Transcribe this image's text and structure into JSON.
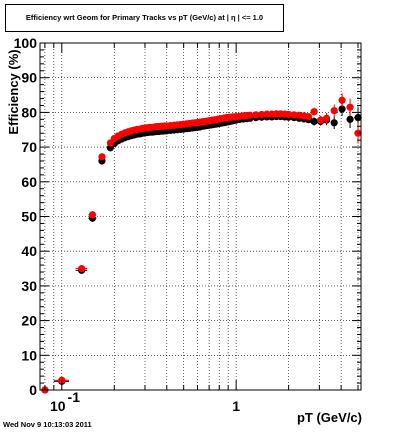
{
  "window": {
    "title": "Efficiency wrt Geom for Primary Tracks vs pT (GeV/c) at | η | <= 1.0",
    "timestamp": "Wed Nov  9 10:13:03 2011"
  },
  "chart_data": {
    "type": "scatter",
    "title": "Efficiency wrt Geom for Primary Tracks vs pT (GeV/c) at | η | <= 1.0",
    "xlabel": "pT (GeV/c)",
    "ylabel": "Efficiency (%)",
    "xscale": "log",
    "xlim": [
      0.075,
      5.2
    ],
    "ylim": [
      0,
      100
    ],
    "y_ticks": [
      0,
      10,
      20,
      30,
      40,
      50,
      60,
      70,
      80,
      90,
      100
    ],
    "x_tick_labels": [
      {
        "value": 0.1,
        "base": "10",
        "exp": "-1"
      },
      {
        "value": 1,
        "base": "1",
        "exp": ""
      }
    ],
    "grid": true,
    "legend": "none",
    "series": [
      {
        "color": "#000000",
        "points": [
          {
            "x": 0.08,
            "y": 0,
            "xerr": 0.004,
            "yerr": 0.5
          },
          {
            "x": 0.1,
            "y": 2.5,
            "xerr": 0.01,
            "yerr": 0.8
          },
          {
            "x": 0.13,
            "y": 34.5,
            "xerr": 0.01,
            "yerr": 1
          },
          {
            "x": 0.15,
            "y": 49.5,
            "xerr": 0.008,
            "yerr": 1
          },
          {
            "x": 0.17,
            "y": 66,
            "xerr": 0.006,
            "yerr": 1
          },
          {
            "x": 0.19,
            "y": 69.8,
            "xerr": 0.005,
            "yerr": 1
          },
          {
            "x": 0.2,
            "y": 71,
            "xerr": 0.005,
            "yerr": 0.8
          },
          {
            "x": 0.21,
            "y": 71.8
          },
          {
            "x": 0.22,
            "y": 72.3
          },
          {
            "x": 0.23,
            "y": 72.7
          },
          {
            "x": 0.24,
            "y": 73
          },
          {
            "x": 0.25,
            "y": 73.3
          },
          {
            "x": 0.26,
            "y": 73.5
          },
          {
            "x": 0.27,
            "y": 73.7
          },
          {
            "x": 0.28,
            "y": 73.8
          },
          {
            "x": 0.29,
            "y": 74
          },
          {
            "x": 0.3,
            "y": 74.1
          },
          {
            "x": 0.31,
            "y": 74.2
          },
          {
            "x": 0.32,
            "y": 74.3
          },
          {
            "x": 0.33,
            "y": 74.3
          },
          {
            "x": 0.34,
            "y": 74.4
          },
          {
            "x": 0.35,
            "y": 74.5
          },
          {
            "x": 0.36,
            "y": 74.5
          },
          {
            "x": 0.37,
            "y": 74.6
          },
          {
            "x": 0.38,
            "y": 74.6
          },
          {
            "x": 0.39,
            "y": 74.7
          },
          {
            "x": 0.4,
            "y": 74.7
          },
          {
            "x": 0.42,
            "y": 74.8
          },
          {
            "x": 0.44,
            "y": 74.9
          },
          {
            "x": 0.46,
            "y": 75
          },
          {
            "x": 0.48,
            "y": 75.1
          },
          {
            "x": 0.5,
            "y": 75.2
          },
          {
            "x": 0.52,
            "y": 75.3
          },
          {
            "x": 0.54,
            "y": 75.4
          },
          {
            "x": 0.56,
            "y": 75.5
          },
          {
            "x": 0.58,
            "y": 75.6
          },
          {
            "x": 0.6,
            "y": 75.7
          },
          {
            "x": 0.62,
            "y": 75.8
          },
          {
            "x": 0.64,
            "y": 76
          },
          {
            "x": 0.66,
            "y": 76.1
          },
          {
            "x": 0.68,
            "y": 76.2
          },
          {
            "x": 0.7,
            "y": 76.3
          },
          {
            "x": 0.72,
            "y": 76.4
          },
          {
            "x": 0.74,
            "y": 76.5
          },
          {
            "x": 0.76,
            "y": 76.6
          },
          {
            "x": 0.78,
            "y": 76.7
          },
          {
            "x": 0.8,
            "y": 76.8
          },
          {
            "x": 0.82,
            "y": 76.9
          },
          {
            "x": 0.84,
            "y": 77
          },
          {
            "x": 0.86,
            "y": 77.1
          },
          {
            "x": 0.88,
            "y": 77.2
          },
          {
            "x": 0.9,
            "y": 77.3
          },
          {
            "x": 0.92,
            "y": 77.4
          },
          {
            "x": 0.94,
            "y": 77.5
          },
          {
            "x": 0.96,
            "y": 77.6
          },
          {
            "x": 0.98,
            "y": 77.7
          },
          {
            "x": 1,
            "y": 77.8
          },
          {
            "x": 1.05,
            "y": 78
          },
          {
            "x": 1.1,
            "y": 78.1
          },
          {
            "x": 1.15,
            "y": 78.2
          },
          {
            "x": 1.2,
            "y": 78.3
          },
          {
            "x": 1.3,
            "y": 78.5
          },
          {
            "x": 1.4,
            "y": 78.6
          },
          {
            "x": 1.5,
            "y": 78.7
          },
          {
            "x": 1.6,
            "y": 78.7
          },
          {
            "x": 1.7,
            "y": 78.8
          },
          {
            "x": 1.8,
            "y": 78.8
          },
          {
            "x": 1.9,
            "y": 78.7
          },
          {
            "x": 2,
            "y": 78.6
          },
          {
            "x": 2.15,
            "y": 78.5
          },
          {
            "x": 2.3,
            "y": 78.3
          },
          {
            "x": 2.45,
            "y": 78.1
          },
          {
            "x": 2.6,
            "y": 77.9
          },
          {
            "x": 2.8,
            "y": 77.4,
            "yerr": 1.2
          },
          {
            "x": 3.05,
            "y": 77.4,
            "yerr": 1.2
          },
          {
            "x": 3.3,
            "y": 77.8,
            "yerr": 1.5
          },
          {
            "x": 3.65,
            "y": 77,
            "xerr": 0.15,
            "yerr": 1.8
          },
          {
            "x": 4.05,
            "y": 81,
            "xerr": 0.15,
            "yerr": 2
          },
          {
            "x": 4.5,
            "y": 78,
            "xerr": 0.2,
            "yerr": 2.5
          },
          {
            "x": 5,
            "y": 78.5,
            "xerr": 0.25,
            "yerr": 3
          }
        ]
      },
      {
        "color": "#ff0000",
        "points": [
          {
            "x": 0.08,
            "y": 0,
            "xerr": 0.004,
            "yerr": 0.5
          },
          {
            "x": 0.1,
            "y": 2.8,
            "xerr": 0.01,
            "yerr": 0.8
          },
          {
            "x": 0.13,
            "y": 35,
            "xerr": 0.01,
            "yerr": 1
          },
          {
            "x": 0.15,
            "y": 50.5,
            "xerr": 0.008,
            "yerr": 1
          },
          {
            "x": 0.17,
            "y": 67.2,
            "xerr": 0.006,
            "yerr": 1
          },
          {
            "x": 0.19,
            "y": 71.2,
            "xerr": 0.005,
            "yerr": 1
          },
          {
            "x": 0.2,
            "y": 72.5,
            "xerr": 0.005,
            "yerr": 0.8
          },
          {
            "x": 0.21,
            "y": 73.2
          },
          {
            "x": 0.22,
            "y": 73.7
          },
          {
            "x": 0.23,
            "y": 74.1
          },
          {
            "x": 0.24,
            "y": 74.4
          },
          {
            "x": 0.25,
            "y": 74.7
          },
          {
            "x": 0.26,
            "y": 74.9
          },
          {
            "x": 0.27,
            "y": 75.1
          },
          {
            "x": 0.28,
            "y": 75.2
          },
          {
            "x": 0.29,
            "y": 75.4
          },
          {
            "x": 0.3,
            "y": 75.5
          },
          {
            "x": 0.31,
            "y": 75.6
          },
          {
            "x": 0.32,
            "y": 75.7
          },
          {
            "x": 0.33,
            "y": 75.7
          },
          {
            "x": 0.34,
            "y": 75.8
          },
          {
            "x": 0.35,
            "y": 75.9
          },
          {
            "x": 0.36,
            "y": 75.9
          },
          {
            "x": 0.37,
            "y": 76
          },
          {
            "x": 0.38,
            "y": 76
          },
          {
            "x": 0.39,
            "y": 76.1
          },
          {
            "x": 0.4,
            "y": 76.1
          },
          {
            "x": 0.42,
            "y": 76.2
          },
          {
            "x": 0.44,
            "y": 76.3
          },
          {
            "x": 0.46,
            "y": 76.4
          },
          {
            "x": 0.48,
            "y": 76.5
          },
          {
            "x": 0.5,
            "y": 76.6
          },
          {
            "x": 0.52,
            "y": 76.7
          },
          {
            "x": 0.54,
            "y": 76.8
          },
          {
            "x": 0.56,
            "y": 76.9
          },
          {
            "x": 0.58,
            "y": 77
          },
          {
            "x": 0.6,
            "y": 77.1
          },
          {
            "x": 0.62,
            "y": 77.2
          },
          {
            "x": 0.64,
            "y": 77.3
          },
          {
            "x": 0.66,
            "y": 77.4
          },
          {
            "x": 0.68,
            "y": 77.5
          },
          {
            "x": 0.7,
            "y": 77.6
          },
          {
            "x": 0.72,
            "y": 77.7
          },
          {
            "x": 0.74,
            "y": 77.8
          },
          {
            "x": 0.76,
            "y": 77.9
          },
          {
            "x": 0.78,
            "y": 78
          },
          {
            "x": 0.8,
            "y": 78.1
          },
          {
            "x": 0.82,
            "y": 78.2
          },
          {
            "x": 0.84,
            "y": 78.3
          },
          {
            "x": 0.86,
            "y": 78.4
          },
          {
            "x": 0.88,
            "y": 78.5
          },
          {
            "x": 0.9,
            "y": 78.5
          },
          {
            "x": 0.92,
            "y": 78.6
          },
          {
            "x": 0.94,
            "y": 78.6
          },
          {
            "x": 0.96,
            "y": 78.7
          },
          {
            "x": 0.98,
            "y": 78.7
          },
          {
            "x": 1,
            "y": 78.8
          },
          {
            "x": 1.05,
            "y": 78.9
          },
          {
            "x": 1.1,
            "y": 79
          },
          {
            "x": 1.15,
            "y": 79.1
          },
          {
            "x": 1.2,
            "y": 79.2
          },
          {
            "x": 1.3,
            "y": 79.3
          },
          {
            "x": 1.4,
            "y": 79.4
          },
          {
            "x": 1.5,
            "y": 79.5
          },
          {
            "x": 1.6,
            "y": 79.5
          },
          {
            "x": 1.7,
            "y": 79.6
          },
          {
            "x": 1.8,
            "y": 79.6
          },
          {
            "x": 1.9,
            "y": 79.5
          },
          {
            "x": 2,
            "y": 79.4
          },
          {
            "x": 2.15,
            "y": 79.3
          },
          {
            "x": 2.3,
            "y": 79.2
          },
          {
            "x": 2.45,
            "y": 79
          },
          {
            "x": 2.6,
            "y": 78.8
          },
          {
            "x": 2.8,
            "y": 80.2,
            "yerr": 1.2
          },
          {
            "x": 3.05,
            "y": 77.8,
            "yerr": 1.2
          },
          {
            "x": 3.3,
            "y": 78.3,
            "yerr": 1.5
          },
          {
            "x": 3.65,
            "y": 80.5,
            "xerr": 0.15,
            "yerr": 1.8
          },
          {
            "x": 4.05,
            "y": 83.5,
            "xerr": 0.15,
            "yerr": 2
          },
          {
            "x": 4.5,
            "y": 81.5,
            "xerr": 0.2,
            "yerr": 2.5
          },
          {
            "x": 5,
            "y": 74,
            "xerr": 0.25,
            "yerr": 3
          }
        ]
      }
    ]
  }
}
